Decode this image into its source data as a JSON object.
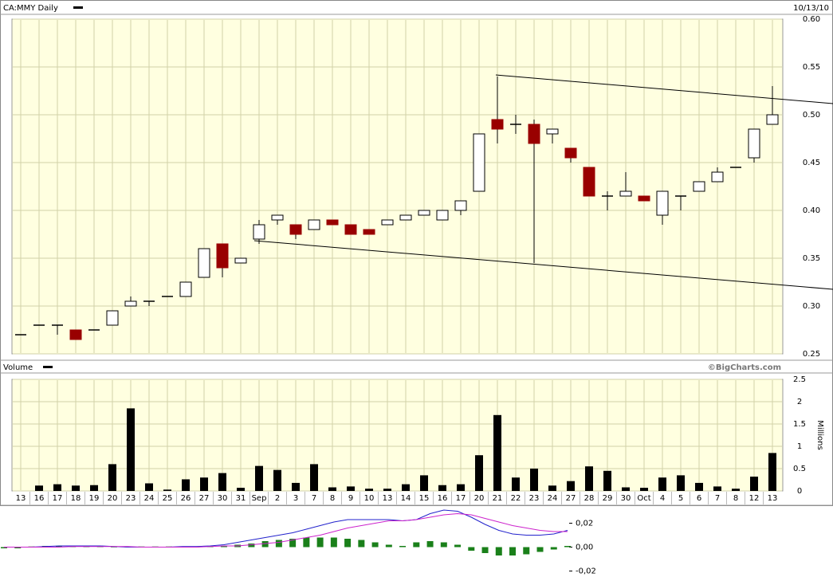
{
  "chart_data": [
    {
      "type": "candlestick",
      "title": "CA:MMY Daily",
      "date": "10/13/10",
      "open": [
        0.27,
        0.28,
        0.28,
        0.275,
        0.275,
        0.28,
        0.3,
        0.305,
        0.31,
        0.31,
        0.33,
        0.365,
        0.345,
        0.37,
        0.39,
        0.385,
        0.38,
        0.39,
        0.385,
        0.38,
        0.385,
        0.39,
        0.395,
        0.39,
        0.4,
        0.42,
        0.495,
        0.49,
        0.49,
        0.48,
        0.465,
        0.445,
        0.415,
        0.415,
        0.415,
        0.395,
        0.415,
        0.42,
        0.43,
        0.445,
        0.455,
        0.49
      ],
      "high": [
        0.27,
        0.28,
        0.28,
        0.275,
        0.275,
        0.295,
        0.31,
        0.305,
        0.31,
        0.325,
        0.36,
        0.365,
        0.35,
        0.39,
        0.395,
        0.385,
        0.39,
        0.39,
        0.385,
        0.38,
        0.39,
        0.395,
        0.4,
        0.4,
        0.41,
        0.48,
        0.54,
        0.5,
        0.495,
        0.485,
        0.465,
        0.445,
        0.42,
        0.44,
        0.415,
        0.42,
        0.415,
        0.43,
        0.445,
        0.445,
        0.485,
        0.53
      ],
      "low": [
        0.27,
        0.28,
        0.27,
        0.265,
        0.275,
        0.28,
        0.3,
        0.3,
        0.31,
        0.31,
        0.33,
        0.33,
        0.345,
        0.365,
        0.385,
        0.37,
        0.38,
        0.385,
        0.375,
        0.375,
        0.385,
        0.39,
        0.395,
        0.39,
        0.395,
        0.42,
        0.47,
        0.48,
        0.345,
        0.47,
        0.45,
        0.415,
        0.4,
        0.415,
        0.41,
        0.385,
        0.4,
        0.42,
        0.43,
        0.445,
        0.45,
        0.49
      ],
      "close": [
        0.27,
        0.28,
        0.28,
        0.265,
        0.275,
        0.295,
        0.305,
        0.305,
        0.31,
        0.325,
        0.36,
        0.34,
        0.35,
        0.385,
        0.395,
        0.375,
        0.39,
        0.385,
        0.375,
        0.375,
        0.39,
        0.395,
        0.4,
        0.4,
        0.41,
        0.48,
        0.485,
        0.49,
        0.47,
        0.485,
        0.455,
        0.415,
        0.415,
        0.42,
        0.41,
        0.42,
        0.415,
        0.43,
        0.44,
        0.445,
        0.485,
        0.5
      ],
      "up_color": "#ffffff",
      "down_color": "#990000",
      "ylim": [
        0.25,
        0.6
      ],
      "yticks": [
        0.25,
        {
          "value": 0.3,
          "label": "0.30"
        },
        0.35,
        {
          "value": 0.4,
          "label": "0.40"
        },
        0.45,
        {
          "value": 0.5,
          "label": "0.50"
        },
        0.55,
        {
          "value": 0.6,
          "label": "0.60"
        }
      ],
      "grid": true
    },
    {
      "type": "bar",
      "title": "Volume",
      "credit": "©BigCharts.com",
      "y_label": "Millions",
      "categories": [
        "13",
        "16",
        "17",
        "18",
        "19",
        "20",
        "23",
        "24",
        "25",
        "26",
        "27",
        "30",
        "31",
        "Sep",
        "2",
        "3",
        "7",
        "8",
        "9",
        "10",
        "13",
        "14",
        "15",
        "16",
        "17",
        "20",
        "21",
        "22",
        "23",
        "24",
        "27",
        "28",
        "29",
        "30",
        "Oct",
        "4",
        "5",
        "6",
        "7",
        "8",
        "12",
        "13"
      ],
      "values": [
        0,
        0.12,
        0.15,
        0.12,
        0.13,
        0.6,
        1.85,
        0.17,
        0.03,
        0.26,
        0.3,
        0.4,
        0.07,
        0.56,
        0.47,
        0.18,
        0.6,
        0.08,
        0.1,
        0.05,
        0.05,
        0.15,
        0.35,
        0.13,
        0.15,
        0.8,
        1.7,
        0.3,
        0.5,
        0.12,
        0.22,
        0.55,
        0.45,
        0.08,
        0.07,
        0.3,
        0.35,
        0.18,
        0.1,
        0.05,
        0.32,
        0.85
      ],
      "color": "#000000",
      "ylim": [
        0,
        2.5
      ],
      "yticks": [
        0,
        0.5,
        1,
        1.5,
        2,
        2.5
      ],
      "grid": true
    },
    {
      "type": "line",
      "series": [
        {
          "type": "bar",
          "color": "#1a801a",
          "values": [
            -0.001,
            -0.001,
            0.0005,
            0.001,
            0.001,
            0.001,
            0.001,
            0.001,
            0.0005,
            0.0005,
            0.0005,
            0.0005,
            0.0005,
            0.0005,
            0.0005,
            0.001,
            0.001,
            0.002,
            0.003,
            0.005,
            0.006,
            0.007,
            0.008,
            0.008,
            0.008,
            0.007,
            0.006,
            0.004,
            0.002,
            0.001,
            0.004,
            0.005,
            0.004,
            0.002,
            -0.003,
            -0.005,
            -0.007,
            -0.007,
            -0.006,
            -0.004,
            -0.002,
            0.001
          ]
        },
        {
          "type": "line",
          "color": "#2222cc",
          "values": [
            0,
            0,
            0,
            0.0005,
            0.001,
            0.001,
            0.001,
            0.001,
            0.0005,
            0,
            0,
            0,
            0,
            0.0005,
            0.0005,
            0.001,
            0.002,
            0.004,
            0.006,
            0.008,
            0.01,
            0.012,
            0.015,
            0.018,
            0.021,
            0.023,
            0.023,
            0.023,
            0.023,
            0.022,
            0.023,
            0.028,
            0.031,
            0.03,
            0.025,
            0.019,
            0.014,
            0.011,
            0.01,
            0.01,
            0.011,
            0.014
          ]
        },
        {
          "type": "line",
          "color": "#cc22cc",
          "values": [
            0,
            0,
            0,
            0,
            0,
            0.0005,
            0.0005,
            0.0005,
            0.0005,
            0.0005,
            0,
            0,
            0,
            0,
            0,
            0.0005,
            0.001,
            0.001,
            0.002,
            0.003,
            0.004,
            0.006,
            0.008,
            0.01,
            0.013,
            0.016,
            0.018,
            0.02,
            0.022,
            0.022,
            0.023,
            0.025,
            0.027,
            0.028,
            0.027,
            0.024,
            0.021,
            0.018,
            0.016,
            0.014,
            0.013,
            0.013
          ]
        }
      ],
      "ylim": [
        -0.025,
        0.031
      ],
      "yticks": [
        {
          "value": 0.02,
          "label": "0,02"
        },
        {
          "value": 0,
          "label": "0,00"
        },
        {
          "value": -0.02,
          "label": "-0,02"
        }
      ]
    }
  ]
}
